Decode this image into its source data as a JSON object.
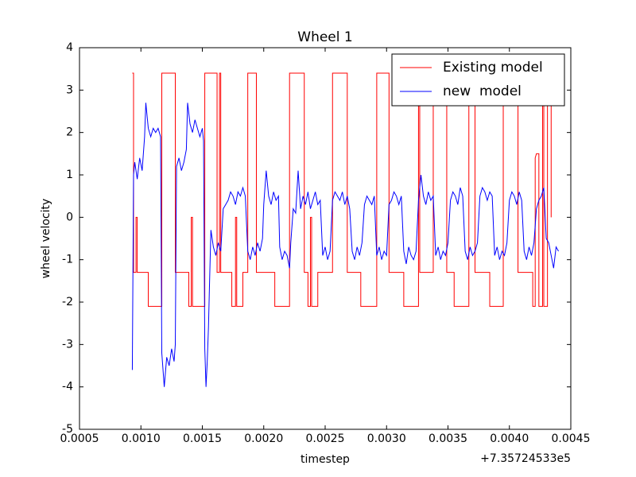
{
  "chart_data": {
    "type": "line",
    "title": "Wheel 1",
    "xlabel": "timestep",
    "ylabel": "wheel velocity",
    "x_offset_text": "+7.35724533e5",
    "xlim": [
      0.0005,
      0.0045
    ],
    "xticks": [
      {
        "value": 0.0005,
        "label": "0.0005"
      },
      {
        "value": 0.001,
        "label": "0.0010"
      },
      {
        "value": 0.0015,
        "label": "0.0015"
      },
      {
        "value": 0.002,
        "label": "0.0020"
      },
      {
        "value": 0.0025,
        "label": "0.0025"
      },
      {
        "value": 0.003,
        "label": "0.0030"
      },
      {
        "value": 0.0035,
        "label": "0.0035"
      },
      {
        "value": 0.004,
        "label": "0.0040"
      },
      {
        "value": 0.0045,
        "label": "0.0045"
      }
    ],
    "ylim": [
      -5,
      4
    ],
    "yticks": [
      4,
      3,
      2,
      1,
      0,
      -1,
      -2,
      -3,
      -4,
      -5
    ],
    "legend": "upper right",
    "series": [
      {
        "name": "Existing model",
        "color": "#ff0000",
        "x": [
          0.00093,
          0.00094,
          0.00094,
          0.00096,
          0.00096,
          0.00097,
          0.00097,
          0.00106,
          0.00106,
          0.00117,
          0.00117,
          0.00128,
          0.00128,
          0.00139,
          0.00139,
          0.00141,
          0.00141,
          0.00142,
          0.00142,
          0.00152,
          0.00152,
          0.00162,
          0.00162,
          0.00164,
          0.00164,
          0.00165,
          0.00165,
          0.00174,
          0.00174,
          0.00177,
          0.00177,
          0.00178,
          0.00178,
          0.00183,
          0.00183,
          0.00187,
          0.00187,
          0.00194,
          0.00194,
          0.00209,
          0.00209,
          0.00221,
          0.00221,
          0.00233,
          0.00233,
          0.00236,
          0.00236,
          0.00238,
          0.00238,
          0.00239,
          0.00239,
          0.00244,
          0.00244,
          0.00256,
          0.00256,
          0.00268,
          0.00268,
          0.00279,
          0.00279,
          0.00292,
          0.00292,
          0.00302,
          0.00302,
          0.00314,
          0.00314,
          0.00326,
          0.00326,
          0.00327,
          0.00327,
          0.00338,
          0.00338,
          0.00349,
          0.00349,
          0.00355,
          0.00355,
          0.00367,
          0.00367,
          0.00372,
          0.00372,
          0.00384,
          0.00384,
          0.00395,
          0.00395,
          0.00407,
          0.00407,
          0.00419,
          0.00419,
          0.00421,
          0.00421,
          0.00422,
          0.00424,
          0.00424,
          0.00427,
          0.00427,
          0.00428,
          0.00428,
          0.00431,
          0.00431,
          0.00434,
          0.00434
        ],
        "values": [
          3.4,
          3.4,
          -1.3,
          -1.3,
          0,
          0,
          -1.3,
          -1.3,
          -2.1,
          -2.1,
          3.4,
          3.4,
          -1.3,
          -1.3,
          -2.1,
          -2.1,
          0,
          0,
          -2.1,
          -2.1,
          3.4,
          3.4,
          -1.3,
          -1.3,
          3.4,
          3.4,
          -1.3,
          -1.3,
          -2.1,
          -2.1,
          0,
          0,
          -2.1,
          -2.1,
          -1.3,
          -1.3,
          3.4,
          3.4,
          -1.3,
          -1.3,
          -2.1,
          -2.1,
          3.4,
          3.4,
          -1.3,
          -1.3,
          -2.1,
          -2.1,
          0,
          0,
          -2.1,
          -2.1,
          -1.3,
          -1.3,
          3.4,
          3.4,
          -1.3,
          -1.3,
          -2.1,
          -2.1,
          3.4,
          3.4,
          -1.3,
          -1.3,
          -2.1,
          -2.1,
          3,
          3,
          -1.3,
          -1.3,
          3.4,
          3.4,
          -1.3,
          -1.3,
          -2.1,
          -2.1,
          3.4,
          3.4,
          -1.3,
          -1.3,
          -2.1,
          -2.1,
          3.4,
          3.4,
          -1.3,
          -1.3,
          -2.1,
          -2.1,
          1.4,
          1.5,
          1.5,
          -2.1,
          -2.1,
          3,
          3,
          -2.1,
          -2.1,
          3.4,
          3.4,
          0
        ]
      },
      {
        "name": "new  model",
        "color": "#0000ff",
        "x": [
          0.00093,
          0.00094,
          0.00095,
          0.00097,
          0.00099,
          0.00101,
          0.00103,
          0.00104,
          0.00106,
          0.00108,
          0.0011,
          0.00112,
          0.00114,
          0.00116,
          0.00117,
          0.00119,
          0.00121,
          0.00123,
          0.00125,
          0.00127,
          0.00128,
          0.00129,
          0.00131,
          0.00133,
          0.00135,
          0.00137,
          0.00138,
          0.0014,
          0.00142,
          0.00144,
          0.00146,
          0.00148,
          0.0015,
          0.00151,
          0.00152,
          0.00153,
          0.00154,
          0.00155,
          0.00156,
          0.00157,
          0.00159,
          0.00161,
          0.00163,
          0.00165,
          0.00167,
          0.00169,
          0.00171,
          0.00173,
          0.00175,
          0.00177,
          0.00179,
          0.00181,
          0.00183,
          0.00185,
          0.00187,
          0.00189,
          0.00191,
          0.00193,
          0.00195,
          0.00197,
          0.00199,
          0.002,
          0.00202,
          0.00204,
          0.00206,
          0.00208,
          0.0021,
          0.00212,
          0.00213,
          0.00215,
          0.00217,
          0.00219,
          0.00221,
          0.00222,
          0.00224,
          0.00226,
          0.00228,
          0.0023,
          0.00232,
          0.00234,
          0.00236,
          0.00238,
          0.0024,
          0.00242,
          0.00244,
          0.00246,
          0.00248,
          0.0025,
          0.00252,
          0.00254,
          0.00256,
          0.00258,
          0.0026,
          0.00262,
          0.00264,
          0.00266,
          0.00268,
          0.0027,
          0.00272,
          0.00274,
          0.00276,
          0.00278,
          0.0028,
          0.00282,
          0.00284,
          0.00286,
          0.00288,
          0.0029,
          0.00292,
          0.00294,
          0.00296,
          0.00298,
          0.003,
          0.00302,
          0.00304,
          0.00306,
          0.00308,
          0.0031,
          0.00312,
          0.00314,
          0.00316,
          0.00318,
          0.0032,
          0.00322,
          0.00324,
          0.00326,
          0.00328,
          0.0033,
          0.00332,
          0.00334,
          0.00336,
          0.00338,
          0.0034,
          0.00342,
          0.00344,
          0.00346,
          0.00348,
          0.0035,
          0.00352,
          0.00354,
          0.00356,
          0.00358,
          0.0036,
          0.00362,
          0.00364,
          0.00366,
          0.00368,
          0.0037,
          0.00372,
          0.00374,
          0.00376,
          0.00378,
          0.0038,
          0.00382,
          0.00384,
          0.00386,
          0.00388,
          0.0039,
          0.00392,
          0.00394,
          0.00396,
          0.00398,
          0.004,
          0.00402,
          0.00404,
          0.00406,
          0.00408,
          0.0041,
          0.00412,
          0.00414,
          0.00416,
          0.00418,
          0.0042,
          0.00422,
          0.00424,
          0.00426,
          0.00428,
          0.0043,
          0.00432,
          0.00434,
          0.00436,
          0.00438,
          0.0044
        ],
        "values": [
          -3.6,
          1.0,
          1.3,
          0.9,
          1.4,
          1.1,
          1.9,
          2.7,
          2.1,
          1.9,
          2.1,
          2.0,
          2.1,
          1.9,
          -3.2,
          -4.0,
          -3.3,
          -3.5,
          -3.1,
          -3.4,
          -3.0,
          1.2,
          1.4,
          1.1,
          1.3,
          1.6,
          2.7,
          2.2,
          2.0,
          2.3,
          2.1,
          1.9,
          2.1,
          1.8,
          -3.1,
          -4.0,
          -3.4,
          -2.6,
          -1.4,
          -0.3,
          -0.7,
          -0.9,
          -0.6,
          -0.8,
          0.2,
          0.3,
          0.4,
          0.6,
          0.5,
          0.3,
          0.6,
          0.5,
          0.7,
          0.5,
          -0.8,
          -1.0,
          -0.7,
          -0.9,
          -0.6,
          -0.8,
          -0.5,
          0.3,
          1.1,
          0.5,
          0.3,
          0.6,
          0.4,
          0.5,
          -0.7,
          -1.0,
          -0.8,
          -0.9,
          -1.2,
          -0.6,
          0.2,
          0.1,
          1.1,
          0.2,
          0.5,
          0.3,
          0.6,
          0.2,
          0.4,
          0.6,
          0.3,
          0.4,
          -0.9,
          -0.7,
          -1.0,
          -0.8,
          0.4,
          0.6,
          0.5,
          0.4,
          0.6,
          0.3,
          0.5,
          0.2,
          -0.8,
          -1.0,
          -0.7,
          -0.9,
          -0.6,
          0.3,
          0.5,
          0.4,
          0.3,
          0.5,
          -0.9,
          -0.7,
          -1.0,
          -0.8,
          -0.9,
          0.3,
          0.4,
          0.6,
          0.5,
          0.3,
          0.5,
          -0.8,
          -1.1,
          -0.7,
          -0.9,
          -1.0,
          -0.8,
          0.4,
          1.0,
          0.5,
          0.3,
          0.6,
          0.4,
          0.5,
          -0.9,
          -0.7,
          -1.0,
          -0.8,
          -0.9,
          -0.6,
          0.4,
          0.6,
          0.5,
          0.3,
          0.7,
          0.5,
          -0.8,
          -1.0,
          -0.7,
          -0.9,
          -0.8,
          -0.6,
          0.5,
          0.7,
          0.6,
          0.4,
          0.6,
          0.5,
          -0.9,
          -0.7,
          -1.0,
          -0.8,
          -0.9,
          -0.6,
          0.4,
          0.6,
          0.5,
          0.3,
          0.6,
          0.4,
          -0.8,
          -1.0,
          -0.7,
          -0.9,
          -0.6,
          0.2,
          0.4,
          0.5,
          0.7,
          -0.5,
          -0.6,
          -0.9,
          -1.2,
          -0.7,
          -0.8
        ]
      }
    ]
  }
}
